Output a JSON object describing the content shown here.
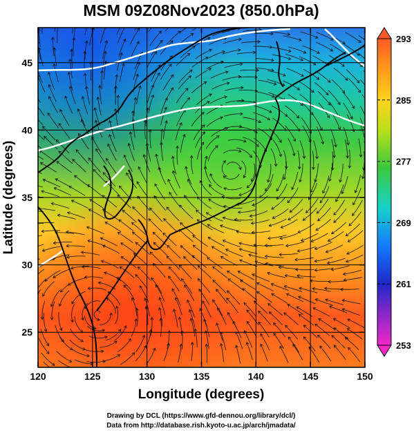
{
  "title": "MSM 09Z08Nov2023 (850.0hPa)",
  "xlabel": "Longitude (degrees)",
  "ylabel": "Latitude  (degrees)",
  "x_ticks": [
    120,
    125,
    130,
    135,
    140,
    145,
    150
  ],
  "y_ticks": [
    25,
    30,
    35,
    40,
    45
  ],
  "xlim": [
    120,
    150
  ],
  "ylim": [
    22.4,
    47.6
  ],
  "colorbar": {
    "ticks": [
      293,
      285,
      277,
      269,
      261,
      253
    ],
    "min": 253,
    "max": 293
  },
  "credits": {
    "line1": "Drawing by DCL (https://www.gfd-dennou.org/library/dcl/)",
    "line2": "Data from http://database.rish.kyoto-u.ac.jp/arch/jmadata/"
  }
}
